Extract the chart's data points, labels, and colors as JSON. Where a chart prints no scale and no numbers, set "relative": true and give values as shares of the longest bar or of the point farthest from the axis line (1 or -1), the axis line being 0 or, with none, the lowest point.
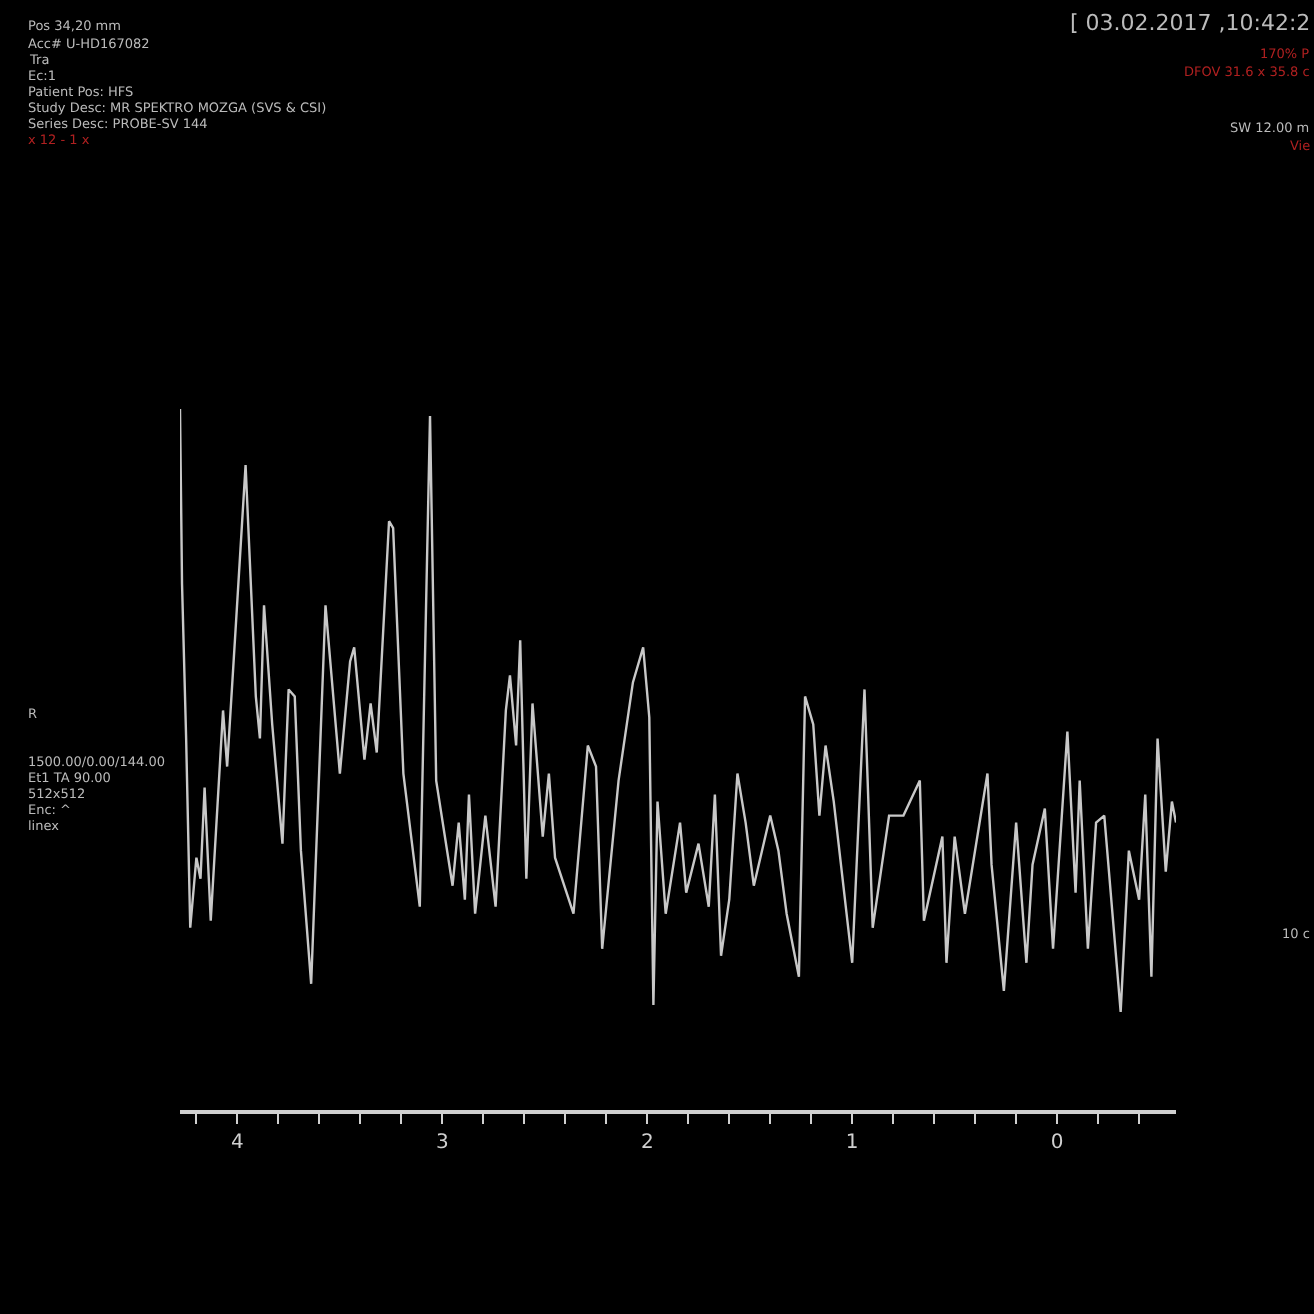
{
  "chart_data": {
    "type": "line",
    "relative": true,
    "color": "#c8c8c8",
    "grid": false,
    "marker": "none",
    "line_style": "solid",
    "tick_labels": "x",
    "xlim": [
      4.28,
      -0.58
    ],
    "xticks": [
      {
        "value": 4.2,
        "label": null
      },
      4,
      {
        "value": 3.8,
        "label": null
      },
      {
        "value": 3.6,
        "label": null
      },
      {
        "value": 3.4,
        "label": null
      },
      {
        "value": 3.2,
        "label": null
      },
      3,
      {
        "value": 2.8,
        "label": null
      },
      {
        "value": 2.6,
        "label": null
      },
      {
        "value": 2.4,
        "label": null
      },
      {
        "value": 2.2,
        "label": null
      },
      2,
      {
        "value": 1.8,
        "label": null
      },
      {
        "value": 1.6,
        "label": null
      },
      {
        "value": 1.4,
        "label": null
      },
      {
        "value": 1.2,
        "label": null
      },
      1,
      {
        "value": 0.8,
        "label": null
      },
      {
        "value": 0.6,
        "label": null
      },
      {
        "value": 0.4,
        "label": null
      },
      {
        "value": 0.2,
        "label": null
      },
      0,
      {
        "value": -0.2,
        "label": null
      },
      {
        "value": -0.4,
        "label": null
      }
    ],
    "x": [
      4.28,
      4.27,
      4.25,
      4.23,
      4.2,
      4.18,
      4.16,
      4.13,
      4.07,
      4.05,
      4.01,
      3.96,
      3.91,
      3.89,
      3.87,
      3.83,
      3.78,
      3.75,
      3.72,
      3.69,
      3.64,
      3.57,
      3.5,
      3.45,
      3.43,
      3.38,
      3.35,
      3.32,
      3.26,
      3.24,
      3.19,
      3.11,
      3.06,
      3.03,
      2.95,
      2.92,
      2.89,
      2.87,
      2.84,
      2.79,
      2.74,
      2.69,
      2.67,
      2.64,
      2.62,
      2.59,
      2.56,
      2.51,
      2.48,
      2.45,
      2.36,
      2.29,
      2.25,
      2.22,
      2.14,
      2.07,
      2.02,
      1.99,
      1.97,
      1.95,
      1.91,
      1.84,
      1.81,
      1.75,
      1.7,
      1.67,
      1.64,
      1.6,
      1.56,
      1.52,
      1.48,
      1.4,
      1.36,
      1.32,
      1.26,
      1.23,
      1.19,
      1.16,
      1.13,
      1.09,
      1.0,
      0.94,
      0.9,
      0.82,
      0.75,
      0.67,
      0.65,
      0.56,
      0.54,
      0.5,
      0.45,
      0.34,
      0.32,
      0.26,
      0.2,
      0.15,
      0.12,
      0.06,
      0.02,
      -0.05,
      -0.09,
      -0.11,
      -0.15,
      -0.19,
      -0.23,
      -0.31,
      -0.35,
      -0.4,
      -0.43,
      -0.46,
      -0.49,
      -0.53,
      -0.56,
      -0.58
    ],
    "values": [
      1.0,
      0.75,
      0.53,
      0.26,
      0.36,
      0.33,
      0.46,
      0.27,
      0.57,
      0.49,
      0.68,
      0.92,
      0.59,
      0.53,
      0.72,
      0.55,
      0.38,
      0.6,
      0.59,
      0.37,
      0.18,
      0.72,
      0.48,
      0.64,
      0.66,
      0.5,
      0.58,
      0.51,
      0.84,
      0.83,
      0.48,
      0.29,
      0.99,
      0.47,
      0.32,
      0.41,
      0.3,
      0.45,
      0.28,
      0.42,
      0.29,
      0.57,
      0.62,
      0.52,
      0.67,
      0.33,
      0.58,
      0.39,
      0.48,
      0.36,
      0.28,
      0.52,
      0.49,
      0.23,
      0.47,
      0.61,
      0.66,
      0.56,
      0.15,
      0.44,
      0.28,
      0.41,
      0.31,
      0.38,
      0.29,
      0.45,
      0.22,
      0.3,
      0.48,
      0.41,
      0.32,
      0.42,
      0.37,
      0.28,
      0.19,
      0.59,
      0.55,
      0.42,
      0.52,
      0.44,
      0.21,
      0.6,
      0.26,
      0.42,
      0.42,
      0.47,
      0.27,
      0.39,
      0.21,
      0.39,
      0.28,
      0.48,
      0.35,
      0.17,
      0.41,
      0.21,
      0.35,
      0.43,
      0.23,
      0.54,
      0.31,
      0.47,
      0.23,
      0.41,
      0.42,
      0.14,
      0.37,
      0.3,
      0.45,
      0.19,
      0.53,
      0.34,
      0.44,
      0.41
    ],
    "annotations": [
      "Pos 34,20 mm",
      "Acc# U-HD167082",
      "Tra",
      "Ec:1",
      "Patient Pos: HFS",
      "Study Desc: MR SPEKTRO MOZGA (SVS & CSI)",
      "Series Desc: PROBE-SV 144",
      "x 12 - 1 x",
      "[ 03.02.2017 ,10:42:2",
      "170% P",
      "DFOV 31.6 x 35.8 c",
      "SW 12.00 m",
      "Vie",
      "R",
      "1500.00/0.00/144.00",
      "Et1 TA 90.00",
      "512x512",
      "Enc: ^",
      "linex",
      "10 c"
    ]
  }
}
